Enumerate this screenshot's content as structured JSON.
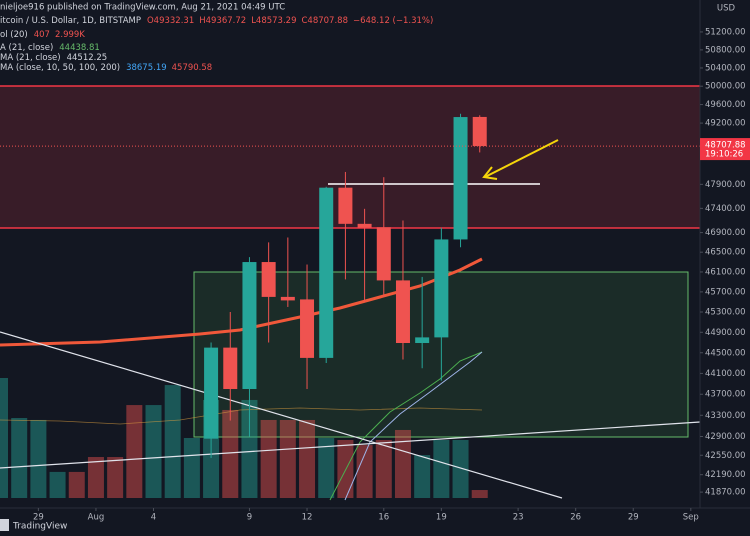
{
  "header": {
    "published": "nieljoe916 published on TradingView.com, Aug 21, 2021 04:49 UTC",
    "symbol": "itcoin / U.S. Dollar, 1D, BITSTAMP",
    "open": "O49332.31",
    "high": "H49367.72",
    "low": "L48573.29",
    "close": "C48707.88",
    "change": "−648.12 (−1.31%)",
    "indicators": [
      {
        "name": "ol (20)",
        "values": [
          "407",
          "2.999K"
        ]
      },
      {
        "name": "A (21, close)",
        "values": [
          "44438.81"
        ]
      },
      {
        "name": "MA (21, close)",
        "values": [
          "44512.25"
        ]
      },
      {
        "name": "MA (close, 10, 50, 100, 200)",
        "values": [
          "38675.19",
          "45790.58"
        ]
      }
    ]
  },
  "chart_data": {
    "type": "candlestick",
    "currency": "USD",
    "log_scale": true,
    "grid": false,
    "ylim": [
      41580,
      51920
    ],
    "yticks": [
      {
        "value": 51200,
        "label": "51200.00"
      },
      {
        "value": 50800,
        "label": "50800.00"
      },
      {
        "value": 50400,
        "label": "50400.00"
      },
      {
        "value": 50000,
        "label": "50000.00"
      },
      {
        "value": 49600,
        "label": "49600.00"
      },
      {
        "value": 49200,
        "label": "49200.00"
      },
      {
        "value": 47900,
        "label": "47900.00"
      },
      {
        "value": 47400,
        "label": "47400.00"
      },
      {
        "value": 46900,
        "label": "46900.00"
      },
      {
        "value": 46500,
        "label": "46500.00"
      },
      {
        "value": 46100,
        "label": "46100.00"
      },
      {
        "value": 45700,
        "label": "45700.00"
      },
      {
        "value": 45300,
        "label": "45300.00"
      },
      {
        "value": 44900,
        "label": "44900.00"
      },
      {
        "value": 44500,
        "label": "44500.00"
      },
      {
        "value": 44100,
        "label": "44100.00"
      },
      {
        "value": 43700,
        "label": "43700.00"
      },
      {
        "value": 43300,
        "label": "43300.00"
      },
      {
        "value": 42900,
        "label": "42900.00"
      },
      {
        "value": 42550,
        "label": "42550.00"
      },
      {
        "value": 42190,
        "label": "42190.00"
      },
      {
        "value": 41870,
        "label": "41870.00"
      }
    ],
    "xlim": [
      "Jul 27",
      "Sep 2"
    ],
    "xticks": [
      {
        "value": "Jul 29",
        "label": "29"
      },
      {
        "value": "Aug 1",
        "label": "Aug"
      },
      {
        "value": "Aug 4",
        "label": "4"
      },
      {
        "value": "Aug 9",
        "label": "9"
      },
      {
        "value": "Aug 12",
        "label": "12"
      },
      {
        "value": "Aug 16",
        "label": "16"
      },
      {
        "value": "Aug 19",
        "label": "19"
      },
      {
        "value": "Aug 23",
        "label": "23"
      },
      {
        "value": "Aug 26",
        "label": "26"
      },
      {
        "value": "Aug 29",
        "label": "29"
      },
      {
        "value": "Sep 1",
        "label": "Sep"
      }
    ],
    "x": [
      "Aug 7",
      "Aug 8",
      "Aug 9",
      "Aug 10",
      "Aug 11",
      "Aug 12",
      "Aug 13",
      "Aug 14",
      "Aug 15",
      "Aug 16",
      "Aug 17",
      "Aug 18",
      "Aug 19",
      "Aug 20",
      "Aug 21"
    ],
    "open": [
      42860,
      44600,
      43800,
      46300,
      45600,
      45550,
      44400,
      47830,
      47080,
      47010,
      45930,
      44690,
      44800,
      46760,
      49332.31
    ],
    "high": [
      44700,
      45300,
      46400,
      46700,
      46800,
      46250,
      47850,
      48160,
      47390,
      48050,
      47150,
      46000,
      47000,
      49400,
      49367.72
    ],
    "low": [
      42500,
      43200,
      42900,
      44700,
      45400,
      43800,
      44300,
      45950,
      45500,
      45600,
      44370,
      44200,
      43960,
      46600,
      48573.29
    ],
    "close": [
      44600,
      43800,
      46300,
      45600,
      45530,
      44400,
      47830,
      47080,
      47000,
      45930,
      44690,
      44800,
      46760,
      49330,
      48707.88
    ],
    "up_color": "#26a69a",
    "down_color": "#ef5350",
    "volume": {
      "x": [
        "Jul 27",
        "Jul 28",
        "Jul 29",
        "Jul 30",
        "Jul 31",
        "Aug 1",
        "Aug 2",
        "Aug 3",
        "Aug 4",
        "Aug 5",
        "Aug 6",
        "Aug 7",
        "Aug 8",
        "Aug 9",
        "Aug 10",
        "Aug 11",
        "Aug 12",
        "Aug 13",
        "Aug 14",
        "Aug 15",
        "Aug 16",
        "Aug 17",
        "Aug 18",
        "Aug 19",
        "Aug 20",
        "Aug 21"
      ],
      "values": [
        6120,
        4080,
        3980,
        1330,
        1330,
        2090,
        2090,
        4740,
        4740,
        5760,
        3060,
        5000,
        4490,
        5000,
        3980,
        3980,
        3980,
        3060,
        2960,
        2700,
        2960,
        3470,
        2190,
        2960,
        2960,
        407
      ],
      "colors": [
        "#26a69a",
        "#26a69a",
        "#26a69a",
        "#26a69a",
        "#ef5350",
        "#ef5350",
        "#ef5350",
        "#ef5350",
        "#26a69a",
        "#26a69a",
        "#26a69a",
        "#26a69a",
        "#ef5350",
        "#26a69a",
        "#ef5350",
        "#ef5350",
        "#ef5350",
        "#26a69a",
        "#ef5350",
        "#ef5350",
        "#ef5350",
        "#ef5350",
        "#26a69a",
        "#26a69a",
        "#26a69a",
        "#ef5350"
      ]
    },
    "last_price_label": "48707.88",
    "countdown": "19:10:26"
  },
  "footer": {
    "logo": "TradingView"
  }
}
